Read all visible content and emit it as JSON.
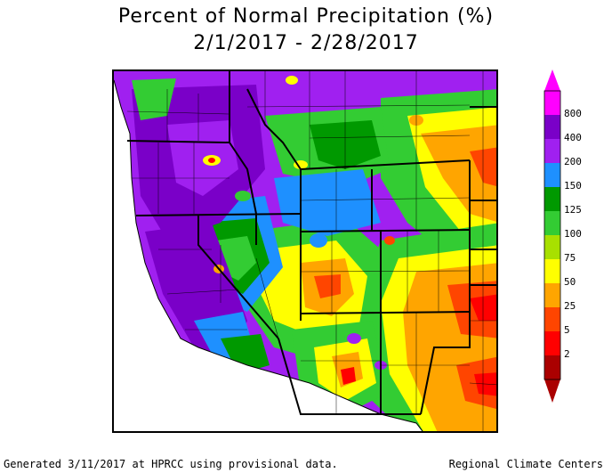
{
  "title": "Percent of Normal Precipitation (%)",
  "date_range": "2/1/2017 - 2/28/2017",
  "legend": {
    "labels": [
      "800",
      "400",
      "200",
      "150",
      "125",
      "100",
      "75",
      "50",
      "25",
      "5",
      "2"
    ],
    "colors": {
      "c800": "#ff00ff",
      "c400": "#7a00c8",
      "c200": "#a020f0",
      "c150": "#1e90ff",
      "c125": "#009900",
      "c100": "#33cc33",
      "c75": "#a8e000",
      "c50": "#ffff00",
      "c25": "#ffa500",
      "c5": "#ff4500",
      "c2": "#ff0000",
      "c0": "#aa0000"
    }
  },
  "footer": {
    "left": "Generated 3/11/2017 at HPRCC using provisional data.",
    "right": "Regional Climate Centers"
  }
}
